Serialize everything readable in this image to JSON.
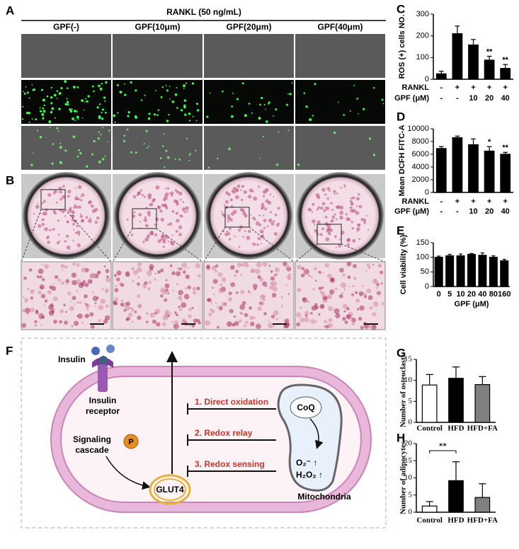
{
  "panel_a": {
    "label": "A",
    "title": "RANKL (50 ng/mL)",
    "columns": [
      "GPF(-)",
      "GPF(10μm)",
      "GPF(20μm)",
      "GPF(40μm)"
    ]
  },
  "panel_b": {
    "label": "B"
  },
  "panel_f": {
    "label": "F",
    "insulin": "Insulin",
    "receptor": [
      "Insulin",
      "receptor"
    ],
    "signaling": [
      "Signaling",
      "cascade"
    ],
    "phosphate": "P",
    "glut4": "GLUT4",
    "mechanisms": [
      "1. Direct oxidation",
      "2. Redox relay",
      "3. Redox sensing"
    ],
    "coq": "CoQ",
    "superoxide": "O₂⁻ ↑",
    "peroxide": "H₂O₂ ↑",
    "mitochondria": "Mitochondria"
  },
  "chart_data": [
    {
      "type": "bar",
      "panel": "C",
      "ylabel": "ROS (+) cells NO.",
      "category_rows": [
        {
          "name": "RANKL",
          "labels": [
            "-",
            "+",
            "+",
            "+",
            "+"
          ]
        },
        {
          "name": "GPF (μM)",
          "labels": [
            "-",
            "-",
            "10",
            "20",
            "40"
          ]
        }
      ],
      "values": [
        25,
        210,
        158,
        88,
        50
      ],
      "errors": [
        12,
        35,
        25,
        18,
        18
      ],
      "value_annotations": [
        null,
        null,
        null,
        "**",
        "**"
      ],
      "color": "#000000",
      "ylim": [
        0,
        300
      ],
      "yticks": [
        0,
        100,
        200,
        300
      ]
    },
    {
      "type": "bar",
      "panel": "D",
      "ylabel": "Mean DCFH FITC-A",
      "category_rows": [
        {
          "name": "RANKL",
          "labels": [
            "-",
            "+",
            "+",
            "+",
            "+"
          ]
        },
        {
          "name": "GPF (μM)",
          "labels": [
            "-",
            "-",
            "10",
            "20",
            "40"
          ]
        }
      ],
      "values": [
        6900,
        8600,
        7500,
        6500,
        6000
      ],
      "errors": [
        300,
        250,
        900,
        700,
        300
      ],
      "value_annotations": [
        null,
        null,
        null,
        "*",
        "**"
      ],
      "color": "#000000",
      "ylim": [
        0,
        10000
      ],
      "yticks": [
        0,
        2000,
        4000,
        6000,
        8000,
        10000
      ]
    },
    {
      "type": "bar",
      "panel": "E",
      "ylabel": "Cell viability (%)",
      "xlabel": "GPF (μM)",
      "categories": [
        "0",
        "5",
        "10",
        "20",
        "40",
        "80",
        "160"
      ],
      "values": [
        100,
        105,
        105,
        110,
        107,
        100,
        88
      ],
      "errors": [
        4,
        5,
        6,
        3,
        8,
        5,
        5
      ],
      "color": "#000000",
      "ylim": [
        0,
        150
      ],
      "yticks": [
        0,
        50,
        100,
        150
      ]
    },
    {
      "type": "bar",
      "panel": "G",
      "ylabel": "Number of osteoclasts",
      "categories": [
        "Control",
        "HFD",
        "HFD+FA"
      ],
      "values": [
        8.9,
        10.5,
        9.0
      ],
      "errors": [
        2.5,
        2.7,
        1.9
      ],
      "colors": [
        "#ffffff",
        "#000000",
        "#808080"
      ],
      "ylim": [
        0,
        15
      ],
      "yticks": [
        0,
        5,
        10,
        15
      ]
    },
    {
      "type": "bar",
      "panel": "H",
      "ylabel": "Number of adipocytes",
      "categories": [
        "Control",
        "HFD",
        "HFD+FA"
      ],
      "values": [
        1.8,
        9.2,
        4.3
      ],
      "errors": [
        1.3,
        5.5,
        4.0
      ],
      "colors": [
        "#ffffff",
        "#000000",
        "#808080"
      ],
      "bracket": {
        "categories": [
          "Control",
          "HFD"
        ],
        "label": "**"
      },
      "ylim": [
        0,
        20
      ],
      "yticks": [
        0,
        5,
        10,
        15,
        20
      ]
    }
  ]
}
